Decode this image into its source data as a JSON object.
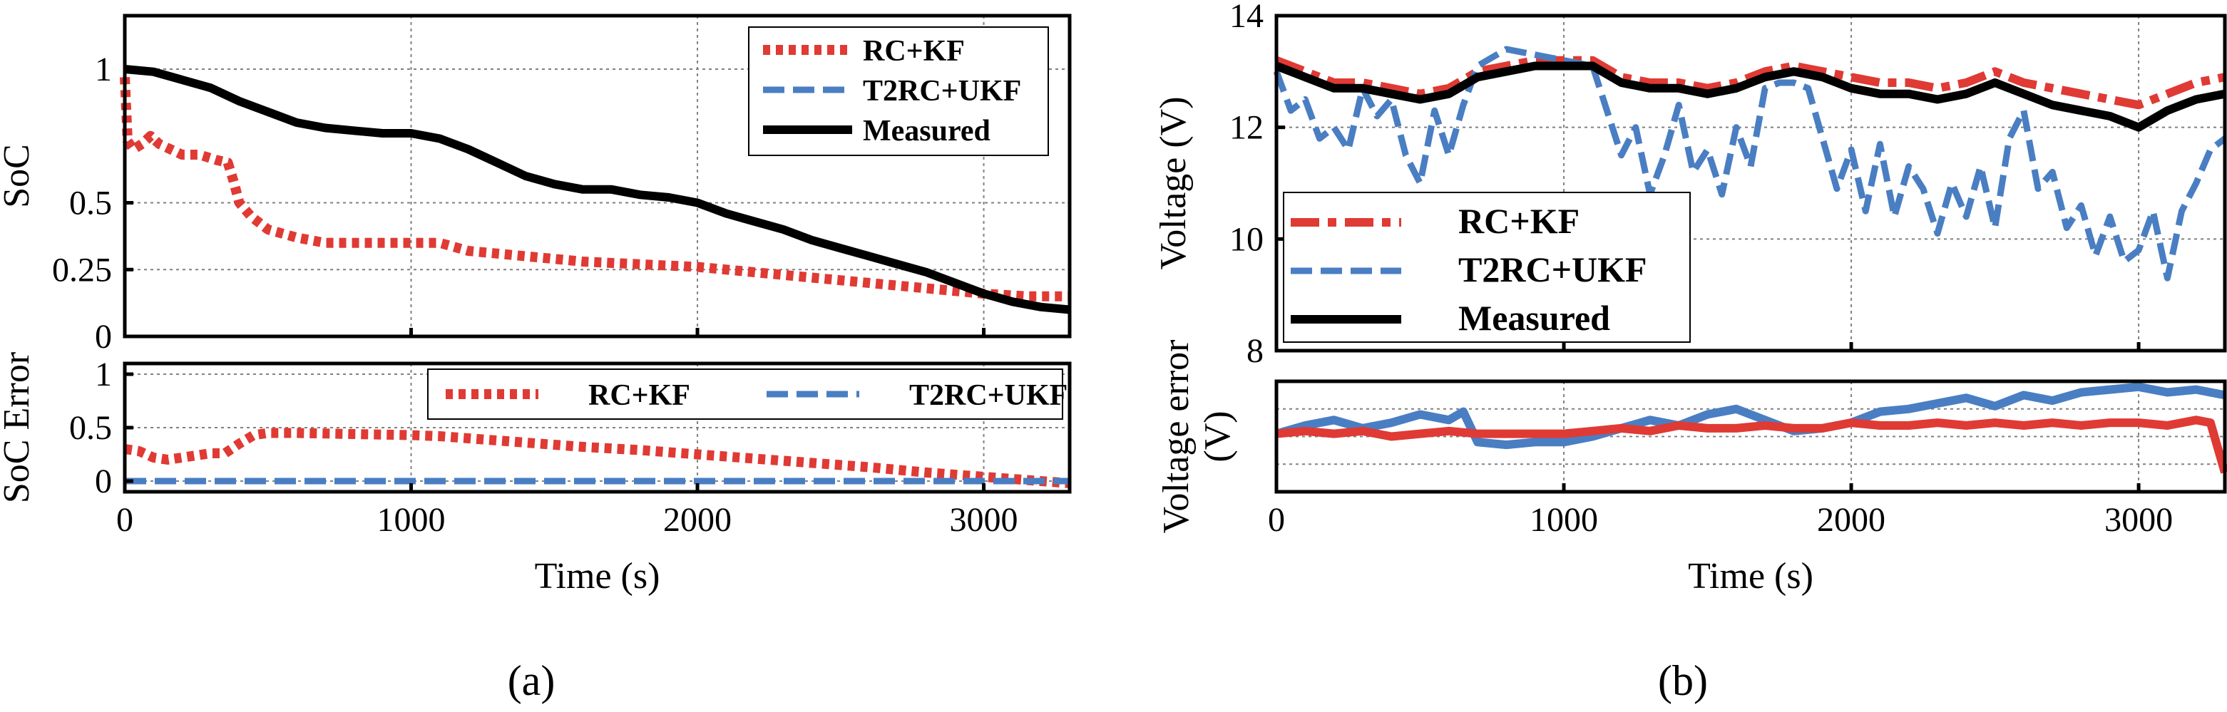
{
  "colors": {
    "rc_kf": "#e03a34",
    "t2rc_ukf": "#4a7ec3",
    "measured": "#000000",
    "grid": "#808080"
  },
  "panels": {
    "a": {
      "caption": "(a)"
    },
    "b": {
      "caption": "(b)"
    }
  },
  "chart_data": [
    {
      "id": "a-soc",
      "type": "line",
      "panel": "a",
      "title": "",
      "xlabel": "",
      "ylabel": "SoC",
      "xlim": [
        0,
        3300
      ],
      "ylim": [
        0,
        1.2
      ],
      "xticks": [
        0,
        1000,
        2000,
        3000
      ],
      "yticks": [
        0,
        0.25,
        0.5,
        1
      ],
      "ytick_labels": [
        "0",
        "0.25",
        "0.5",
        "1"
      ],
      "xtick_labels": [],
      "grid": true,
      "legend": {
        "placement": "top-right"
      },
      "series": [
        {
          "name": "RC+KF",
          "key": "rc_kf",
          "style": "dotted",
          "x": [
            0,
            10,
            30,
            60,
            90,
            120,
            160,
            200,
            260,
            320,
            360,
            380,
            400,
            440,
            500,
            600,
            700,
            800,
            900,
            1000,
            1050,
            1100,
            1200,
            1400,
            1600,
            1800,
            2000,
            2200,
            2400,
            2600,
            2800,
            3000,
            3150,
            3300
          ],
          "y": [
            0.97,
            0.73,
            0.7,
            0.72,
            0.75,
            0.72,
            0.7,
            0.68,
            0.68,
            0.66,
            0.65,
            0.58,
            0.5,
            0.45,
            0.4,
            0.37,
            0.35,
            0.35,
            0.35,
            0.35,
            0.35,
            0.35,
            0.32,
            0.3,
            0.28,
            0.27,
            0.26,
            0.24,
            0.22,
            0.2,
            0.18,
            0.16,
            0.15,
            0.15
          ]
        },
        {
          "name": "T2RC+UKF",
          "key": "t2rc_ukf",
          "style": "dashed",
          "x": [
            0,
            100,
            200,
            300,
            400,
            500,
            600,
            700,
            800,
            900,
            1000,
            1100,
            1200,
            1300,
            1400,
            1500,
            1600,
            1700,
            1800,
            1900,
            2000,
            2100,
            2200,
            2300,
            2400,
            2500,
            2600,
            2700,
            2800,
            2900,
            3000,
            3100,
            3200,
            3300
          ],
          "y": [
            1.0,
            0.99,
            0.96,
            0.93,
            0.88,
            0.84,
            0.8,
            0.78,
            0.77,
            0.76,
            0.76,
            0.74,
            0.7,
            0.65,
            0.6,
            0.57,
            0.55,
            0.55,
            0.53,
            0.52,
            0.5,
            0.46,
            0.43,
            0.4,
            0.36,
            0.33,
            0.3,
            0.27,
            0.24,
            0.2,
            0.16,
            0.13,
            0.11,
            0.1
          ]
        },
        {
          "name": "Measured",
          "key": "measured",
          "style": "solid",
          "x": [
            0,
            100,
            200,
            300,
            400,
            500,
            600,
            700,
            800,
            900,
            1000,
            1100,
            1200,
            1300,
            1400,
            1500,
            1600,
            1700,
            1800,
            1900,
            2000,
            2100,
            2200,
            2300,
            2400,
            2500,
            2600,
            2700,
            2800,
            2900,
            3000,
            3100,
            3200,
            3300
          ],
          "y": [
            1.0,
            0.99,
            0.96,
            0.93,
            0.88,
            0.84,
            0.8,
            0.78,
            0.77,
            0.76,
            0.76,
            0.74,
            0.7,
            0.65,
            0.6,
            0.57,
            0.55,
            0.55,
            0.53,
            0.52,
            0.5,
            0.46,
            0.43,
            0.4,
            0.36,
            0.33,
            0.3,
            0.27,
            0.24,
            0.2,
            0.16,
            0.13,
            0.11,
            0.1
          ]
        }
      ]
    },
    {
      "id": "a-soc-error",
      "type": "line",
      "panel": "a",
      "title": "",
      "xlabel": "Time (s)",
      "ylabel": "SoC Error",
      "xlim": [
        0,
        3300
      ],
      "ylim": [
        -0.1,
        1.1
      ],
      "xticks": [
        0,
        1000,
        2000,
        3000
      ],
      "xtick_labels": [
        "0",
        "1000",
        "2000",
        "3000"
      ],
      "yticks": [
        0,
        0.5,
        1
      ],
      "ytick_labels": [
        "0",
        "0.5",
        "1"
      ],
      "grid": true,
      "legend": {
        "placement": "top-right"
      },
      "series": [
        {
          "name": "RC+KF",
          "key": "rc_kf",
          "style": "dotted",
          "x": [
            0,
            50,
            100,
            150,
            200,
            300,
            350,
            400,
            450,
            500,
            600,
            800,
            1000,
            1100,
            1200,
            1400,
            1600,
            1800,
            2000,
            2200,
            2400,
            2600,
            2800,
            3000,
            3150,
            3300
          ],
          "y": [
            0.3,
            0.28,
            0.22,
            0.2,
            0.22,
            0.26,
            0.26,
            0.35,
            0.43,
            0.45,
            0.45,
            0.44,
            0.43,
            0.42,
            0.4,
            0.36,
            0.32,
            0.29,
            0.25,
            0.21,
            0.17,
            0.13,
            0.08,
            0.04,
            0.01,
            -0.02
          ]
        },
        {
          "name": "T2RC+UKF",
          "key": "t2rc_ukf",
          "style": "dashed",
          "x": [
            0,
            3300
          ],
          "y": [
            0.0,
            0.0
          ]
        }
      ]
    },
    {
      "id": "b-voltage",
      "type": "line",
      "panel": "b",
      "title": "",
      "xlabel": "",
      "ylabel": "Voltage (V)",
      "xlim": [
        0,
        3300
      ],
      "ylim": [
        8,
        14
      ],
      "xticks": [
        0,
        1000,
        2000,
        3000
      ],
      "xtick_labels": [],
      "yticks": [
        8,
        10,
        12,
        14
      ],
      "ytick_labels": [
        "8",
        "10",
        "12",
        "14"
      ],
      "grid": true,
      "legend": {
        "placement": "bottom-left"
      },
      "series": [
        {
          "name": "RC+KF",
          "key": "rc_kf",
          "style": "dashdot",
          "x": [
            0,
            100,
            200,
            300,
            400,
            500,
            600,
            700,
            800,
            900,
            1000,
            1100,
            1200,
            1300,
            1400,
            1500,
            1600,
            1700,
            1800,
            1900,
            2000,
            2100,
            2200,
            2300,
            2400,
            2500,
            2600,
            2700,
            2800,
            2900,
            3000,
            3100,
            3200,
            3300
          ],
          "y": [
            13.2,
            13.0,
            12.8,
            12.8,
            12.7,
            12.6,
            12.7,
            13.0,
            13.1,
            13.2,
            13.2,
            13.2,
            12.9,
            12.8,
            12.8,
            12.7,
            12.8,
            13.0,
            13.1,
            13.0,
            12.9,
            12.8,
            12.8,
            12.7,
            12.8,
            13.0,
            12.8,
            12.7,
            12.6,
            12.5,
            12.4,
            12.6,
            12.8,
            12.9
          ]
        },
        {
          "name": "T2RC+UKF",
          "key": "t2rc_ukf",
          "style": "dashed",
          "x": [
            0,
            50,
            100,
            150,
            200,
            250,
            300,
            350,
            400,
            450,
            500,
            550,
            600,
            650,
            700,
            800,
            900,
            1000,
            1100,
            1150,
            1200,
            1250,
            1300,
            1350,
            1400,
            1450,
            1500,
            1550,
            1600,
            1650,
            1700,
            1750,
            1800,
            1850,
            1900,
            1950,
            2000,
            2050,
            2100,
            2150,
            2200,
            2250,
            2300,
            2350,
            2400,
            2450,
            2500,
            2550,
            2600,
            2650,
            2700,
            2750,
            2800,
            2850,
            2900,
            2950,
            3000,
            3050,
            3100,
            3150,
            3200,
            3250,
            3300
          ],
          "y": [
            13.0,
            12.3,
            12.5,
            11.8,
            12.0,
            11.6,
            12.7,
            12.2,
            12.5,
            11.5,
            11.0,
            12.3,
            11.5,
            12.4,
            13.1,
            13.4,
            13.3,
            13.2,
            13.1,
            12.3,
            11.5,
            12.0,
            10.8,
            11.5,
            12.4,
            11.2,
            11.6,
            10.8,
            12.0,
            11.3,
            12.7,
            12.8,
            12.8,
            12.7,
            11.8,
            10.9,
            11.6,
            10.5,
            11.7,
            10.4,
            11.3,
            10.9,
            10.1,
            11.0,
            10.4,
            11.3,
            10.2,
            11.8,
            12.3,
            10.9,
            11.2,
            10.2,
            10.6,
            9.7,
            10.4,
            9.6,
            9.8,
            10.5,
            9.3,
            10.5,
            11.0,
            11.6,
            11.8
          ]
        },
        {
          "name": "Measured",
          "key": "measured",
          "style": "solid",
          "x": [
            0,
            100,
            200,
            300,
            400,
            500,
            600,
            700,
            800,
            900,
            1000,
            1100,
            1200,
            1300,
            1400,
            1500,
            1600,
            1700,
            1800,
            1900,
            2000,
            2100,
            2200,
            2300,
            2400,
            2500,
            2600,
            2700,
            2800,
            2900,
            3000,
            3100,
            3200,
            3300
          ],
          "y": [
            13.1,
            12.9,
            12.7,
            12.7,
            12.6,
            12.5,
            12.6,
            12.9,
            13.0,
            13.1,
            13.1,
            13.1,
            12.8,
            12.7,
            12.7,
            12.6,
            12.7,
            12.9,
            13.0,
            12.9,
            12.7,
            12.6,
            12.6,
            12.5,
            12.6,
            12.8,
            12.6,
            12.4,
            12.3,
            12.2,
            12.0,
            12.3,
            12.5,
            12.6
          ]
        }
      ]
    },
    {
      "id": "b-voltage-error",
      "type": "line",
      "panel": "b",
      "title": "",
      "xlabel": "Time (s)",
      "ylabel": "Voltage error (V)",
      "ylabel_lines": [
        "Voltage error",
        "(V)"
      ],
      "xlim": [
        0,
        3300
      ],
      "ylim": [
        -2,
        2
      ],
      "xticks": [
        0,
        1000,
        2000,
        3000
      ],
      "xtick_labels": [
        "0",
        "1000",
        "2000",
        "3000"
      ],
      "yticks": [],
      "ytick_labels": [],
      "grid": true,
      "legend": null,
      "series": [
        {
          "name": "T2RC+UKF",
          "key": "t2rc_ukf",
          "style": "solid",
          "x": [
            0,
            100,
            200,
            300,
            400,
            500,
            600,
            650,
            700,
            800,
            900,
            1000,
            1100,
            1200,
            1300,
            1400,
            1500,
            1600,
            1700,
            1800,
            1900,
            2000,
            2100,
            2200,
            2300,
            2400,
            2500,
            2600,
            2700,
            2800,
            2900,
            3000,
            3100,
            3200,
            3300
          ],
          "y": [
            0.1,
            0.4,
            0.6,
            0.3,
            0.5,
            0.8,
            0.6,
            0.9,
            -0.2,
            -0.3,
            -0.2,
            -0.2,
            0.0,
            0.3,
            0.6,
            0.4,
            0.8,
            1.0,
            0.6,
            0.2,
            0.3,
            0.5,
            0.9,
            1.0,
            1.2,
            1.4,
            1.1,
            1.5,
            1.3,
            1.6,
            1.7,
            1.8,
            1.6,
            1.7,
            1.5
          ]
        },
        {
          "name": "RC+KF",
          "key": "rc_kf",
          "style": "solid",
          "x": [
            0,
            100,
            200,
            300,
            400,
            500,
            600,
            700,
            800,
            900,
            1000,
            1100,
            1200,
            1300,
            1400,
            1500,
            1600,
            1700,
            1800,
            1900,
            2000,
            2100,
            2200,
            2300,
            2400,
            2500,
            2600,
            2700,
            2800,
            2900,
            3000,
            3100,
            3200,
            3250,
            3300
          ],
          "y": [
            0.1,
            0.2,
            0.1,
            0.2,
            0.0,
            0.1,
            0.2,
            0.1,
            0.1,
            0.1,
            0.1,
            0.2,
            0.3,
            0.2,
            0.4,
            0.3,
            0.3,
            0.4,
            0.3,
            0.3,
            0.5,
            0.4,
            0.4,
            0.5,
            0.4,
            0.5,
            0.4,
            0.5,
            0.4,
            0.5,
            0.5,
            0.4,
            0.6,
            0.5,
            -1.3
          ]
        }
      ]
    }
  ]
}
